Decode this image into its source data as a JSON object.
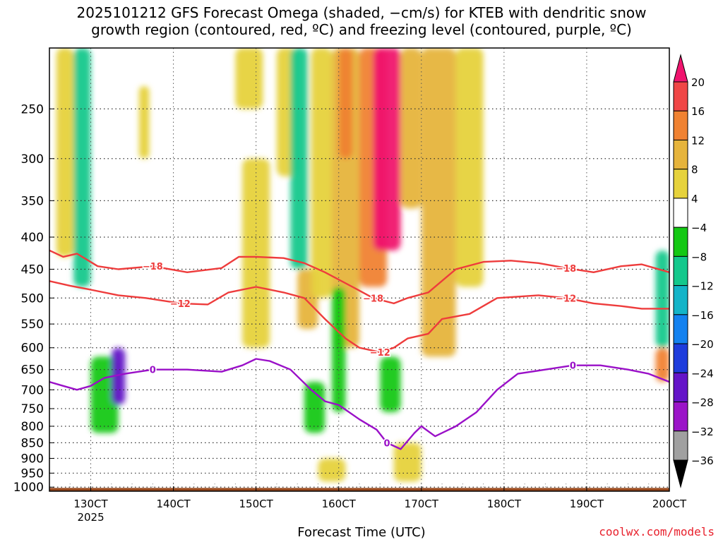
{
  "title_line1": "2025101212 GFS Forecast Omega (shaded, −cm/s) for KTEB with dendritic snow",
  "title_line2": "growth region (contoured, red, ºC) and freezing level (contoured, purple, ºC)",
  "credit": "coolwx.com/models",
  "chart_data": {
    "type": "heatmap",
    "xlabel": "Forecast Time (UTC)",
    "ylabel": "",
    "x_ticks": [
      "130CT",
      "140CT",
      "150CT",
      "160CT",
      "170CT",
      "180CT",
      "190CT",
      "200CT"
    ],
    "x_tick_hours": [
      12,
      36,
      60,
      84,
      108,
      132,
      156,
      180
    ],
    "x_year_label": "2025",
    "xlim": [
      0,
      180
    ],
    "y_ticks": [
      250,
      300,
      350,
      400,
      450,
      500,
      550,
      600,
      650,
      700,
      750,
      800,
      850,
      900,
      950,
      1000
    ],
    "ylim": [
      1015,
      200
    ],
    "y_scale": "log-pressure",
    "grid": true,
    "colorbar": {
      "levels": [
        "20",
        "16",
        "12",
        "8",
        "4",
        "−4",
        "−8",
        "−12",
        "−16",
        "−20",
        "−24",
        "−28",
        "−32",
        "−36"
      ],
      "colors": [
        "#f0146e",
        "#f04646",
        "#f08232",
        "#e6b43c",
        "#e6d23c",
        "#ffffff",
        "#14c814",
        "#14c88c",
        "#14b4c8",
        "#1482f0",
        "#1e3cdc",
        "#6414c8",
        "#9b14c8",
        "#a0a0a0",
        "#000000"
      ]
    },
    "omega_regions": [
      {
        "t": [
          7,
          12
        ],
        "p": [
          200,
          480
        ],
        "value": -10
      },
      {
        "t": [
          2,
          7
        ],
        "p": [
          200,
          430
        ],
        "value": 6
      },
      {
        "t": [
          12,
          20
        ],
        "p": [
          620,
          820
        ],
        "value": -8
      },
      {
        "t": [
          18,
          22
        ],
        "p": [
          600,
          740
        ],
        "value": -28
      },
      {
        "t": [
          26,
          29
        ],
        "p": [
          230,
          300
        ],
        "value": 6
      },
      {
        "t": [
          54,
          62
        ],
        "p": [
          200,
          250
        ],
        "value": 6
      },
      {
        "t": [
          56,
          64
        ],
        "p": [
          300,
          600
        ],
        "value": 6
      },
      {
        "t": [
          66,
          72
        ],
        "p": [
          200,
          320
        ],
        "value": 5
      },
      {
        "t": [
          70,
          75
        ],
        "p": [
          200,
          450
        ],
        "value": -10
      },
      {
        "t": [
          72,
          78
        ],
        "p": [
          450,
          560
        ],
        "value": 10
      },
      {
        "t": [
          76,
          82
        ],
        "p": [
          200,
          500
        ],
        "value": 6
      },
      {
        "t": [
          82,
          90
        ],
        "p": [
          200,
          600
        ],
        "value": 10
      },
      {
        "t": [
          84,
          88
        ],
        "p": [
          200,
          300
        ],
        "value": 14
      },
      {
        "t": [
          90,
          98
        ],
        "p": [
          200,
          480
        ],
        "value": 12
      },
      {
        "t": [
          94,
          102
        ],
        "p": [
          200,
          420
        ],
        "value": 21
      },
      {
        "t": [
          102,
          108
        ],
        "p": [
          200,
          360
        ],
        "value": 10
      },
      {
        "t": [
          108,
          118
        ],
        "p": [
          200,
          620
        ],
        "value": 10
      },
      {
        "t": [
          118,
          126
        ],
        "p": [
          200,
          480
        ],
        "value": 6
      },
      {
        "t": [
          82,
          86
        ],
        "p": [
          480,
          760
        ],
        "value": -6
      },
      {
        "t": [
          96,
          102
        ],
        "p": [
          620,
          760
        ],
        "value": -6
      },
      {
        "t": [
          74,
          80
        ],
        "p": [
          680,
          820
        ],
        "value": -6
      },
      {
        "t": [
          78,
          86
        ],
        "p": [
          900,
          980
        ],
        "value": 5
      },
      {
        "t": [
          100,
          108
        ],
        "p": [
          850,
          980
        ],
        "value": 6
      },
      {
        "t": [
          176,
          180
        ],
        "p": [
          420,
          600
        ],
        "value": -12
      },
      {
        "t": [
          176,
          180
        ],
        "p": [
          600,
          680
        ],
        "value": 14
      }
    ],
    "series": [
      {
        "name": "−18",
        "color": "#ee3c3c",
        "t": [
          0,
          4,
          8,
          14,
          20,
          30,
          40,
          50,
          55,
          60,
          68,
          74,
          80,
          88,
          94,
          100,
          104,
          110,
          118,
          126,
          134,
          142,
          150,
          158,
          166,
          172,
          180
        ],
        "p": [
          420,
          430,
          425,
          445,
          450,
          445,
          455,
          448,
          430,
          430,
          432,
          440,
          455,
          480,
          500,
          510,
          500,
          490,
          450,
          438,
          436,
          440,
          448,
          455,
          445,
          442,
          455
        ]
      },
      {
        "name": "−12",
        "color": "#ee3c3c",
        "t": [
          0,
          6,
          12,
          20,
          28,
          38,
          46,
          52,
          60,
          68,
          74,
          80,
          86,
          90,
          96,
          100,
          104,
          110,
          114,
          122,
          130,
          142,
          150,
          158,
          166,
          172,
          180
        ],
        "p": [
          470,
          478,
          485,
          495,
          500,
          510,
          512,
          490,
          480,
          490,
          500,
          540,
          580,
          600,
          610,
          600,
          580,
          570,
          540,
          530,
          500,
          495,
          500,
          510,
          515,
          520,
          520
        ]
      },
      {
        "name": "0",
        "color": "#9a10c8",
        "t": [
          0,
          4,
          8,
          12,
          16,
          22,
          30,
          40,
          50,
          56,
          60,
          64,
          70,
          76,
          80,
          84,
          90,
          95,
          98,
          102,
          106,
          108,
          112,
          118,
          124,
          130,
          136,
          144,
          152,
          160,
          168,
          174,
          180
        ],
        "p": [
          680,
          690,
          700,
          690,
          670,
          660,
          650,
          650,
          655,
          640,
          625,
          630,
          650,
          700,
          730,
          740,
          780,
          810,
          850,
          870,
          820,
          800,
          830,
          800,
          760,
          700,
          660,
          650,
          640,
          640,
          650,
          660,
          680
        ]
      }
    ]
  }
}
